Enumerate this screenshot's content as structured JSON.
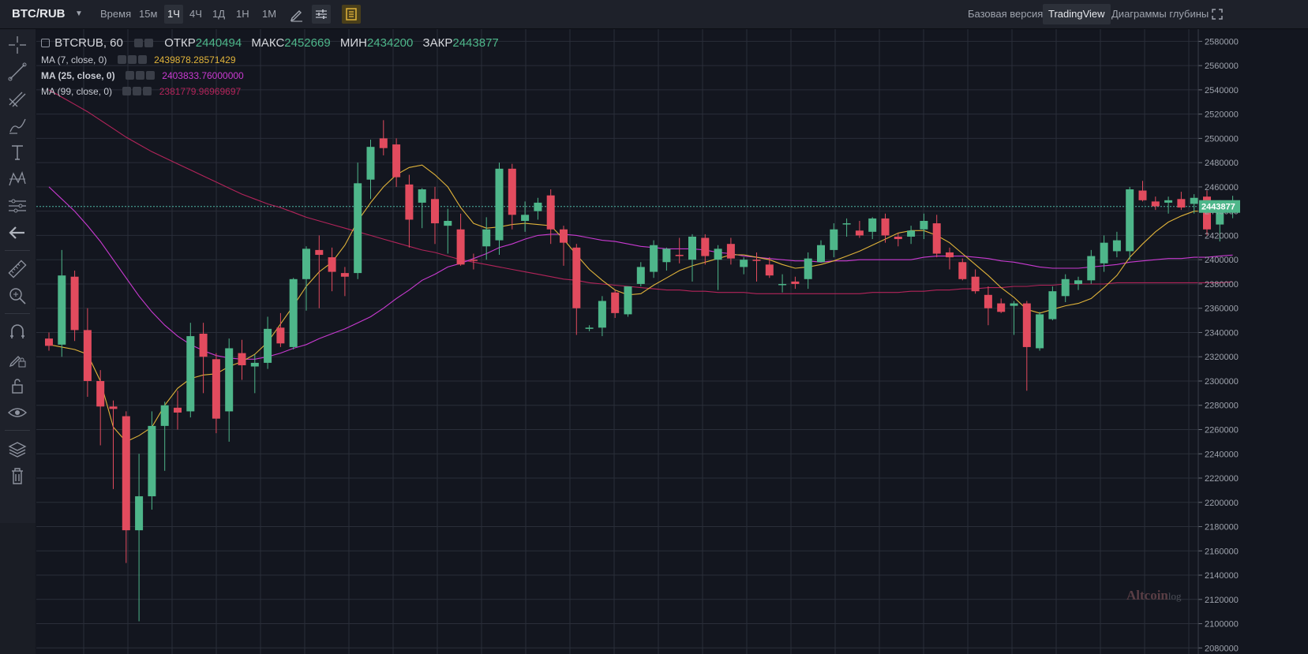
{
  "toolbar": {
    "symbol": "BTC/RUB",
    "timeframes": [
      {
        "label": "Время",
        "active": false
      },
      {
        "label": "15м",
        "active": false
      },
      {
        "label": "1Ч",
        "active": true
      },
      {
        "label": "4Ч",
        "active": false
      },
      {
        "label": "1Д",
        "active": false
      },
      {
        "label": "1Н",
        "active": false
      },
      {
        "label": "1М",
        "active": false
      }
    ],
    "views": [
      {
        "label": "Базовая версия",
        "active": false
      },
      {
        "label": "TradingView",
        "active": true
      },
      {
        "label": "Диаграммы глубины",
        "active": false
      }
    ]
  },
  "legend": {
    "title": "BTCRUB, 60",
    "ohlc": [
      {
        "label": "ОТКР",
        "value": "2440494"
      },
      {
        "label": "МАКС",
        "value": "2452669"
      },
      {
        "label": "МИН",
        "value": "2434200"
      },
      {
        "label": "ЗАКР",
        "value": "2443877"
      }
    ],
    "ma": [
      {
        "label": "MA (7, close, 0)",
        "value": "2439878.28571429",
        "color": "#e0b33a"
      },
      {
        "label": "MA (25, close, 0)",
        "value": "2403833.76000000",
        "color": "#c93ad1"
      },
      {
        "label": "MA (99, close, 0)",
        "value": "2381779.96969697",
        "color": "#b3245a"
      }
    ]
  },
  "colors": {
    "up": "#4eb68a",
    "down": "#e24b5e",
    "background": "#13161f",
    "grid": "#2a2e39"
  },
  "watermark": {
    "brand": "Altcoin",
    "suffix": "log"
  },
  "chart_data": {
    "type": "candlestick",
    "ylim": [
      2075000,
      2590000
    ],
    "price_ticks": [
      "2580000",
      "2560000",
      "2540000",
      "2520000",
      "2500000",
      "2480000",
      "2460000",
      "2440000",
      "2420000",
      "2400000",
      "2380000",
      "2360000",
      "2340000",
      "2320000",
      "2300000",
      "2280000",
      "2260000",
      "2240000",
      "2220000",
      "2200000",
      "2180000",
      "2160000",
      "2140000",
      "2120000",
      "2100000",
      "2080000"
    ],
    "last_price": "2443877",
    "candles": [
      [
        2335000,
        2340000,
        2325000,
        2329000
      ],
      [
        2330000,
        2408000,
        2320000,
        2387000
      ],
      [
        2386000,
        2391000,
        2333000,
        2342000
      ],
      [
        2342000,
        2360000,
        2287000,
        2300000
      ],
      [
        2300000,
        2309000,
        2247000,
        2279000
      ],
      [
        2279000,
        2284000,
        2211000,
        2277000
      ],
      [
        2271000,
        2275000,
        2150000,
        2177000
      ],
      [
        2177000,
        2240000,
        2102000,
        2205000
      ],
      [
        2205000,
        2275000,
        2194000,
        2263000
      ],
      [
        2263000,
        2283000,
        2226000,
        2280000
      ],
      [
        2278000,
        2292000,
        2260000,
        2274000
      ],
      [
        2275000,
        2348000,
        2270000,
        2337000
      ],
      [
        2339000,
        2348000,
        2290000,
        2320000
      ],
      [
        2318000,
        2323000,
        2257000,
        2269000
      ],
      [
        2275000,
        2335000,
        2250000,
        2327000
      ],
      [
        2323000,
        2334000,
        2301000,
        2313000
      ],
      [
        2312000,
        2322000,
        2290000,
        2315000
      ],
      [
        2315000,
        2353000,
        2310000,
        2343000
      ],
      [
        2344000,
        2356000,
        2328000,
        2331000
      ],
      [
        2328000,
        2385000,
        2326000,
        2384000
      ],
      [
        2384000,
        2411000,
        2358000,
        2409000
      ],
      [
        2408000,
        2420000,
        2360000,
        2404000
      ],
      [
        2402000,
        2410000,
        2374000,
        2390000
      ],
      [
        2389000,
        2394000,
        2370000,
        2386000
      ],
      [
        2389000,
        2480000,
        2384000,
        2463000
      ],
      [
        2466000,
        2499000,
        2450000,
        2493000
      ],
      [
        2500000,
        2515000,
        2486000,
        2492000
      ],
      [
        2495000,
        2500000,
        2460000,
        2468000
      ],
      [
        2462000,
        2470000,
        2410000,
        2433000
      ],
      [
        2447000,
        2459000,
        2426000,
        2458000
      ],
      [
        2450000,
        2460000,
        2413000,
        2430000
      ],
      [
        2428000,
        2442000,
        2405000,
        2432000
      ],
      [
        2425000,
        2438000,
        2395000,
        2396000
      ],
      [
        2400000,
        2405000,
        2392000,
        2399000
      ],
      [
        2411000,
        2435000,
        2400000,
        2425000
      ],
      [
        2416000,
        2480000,
        2404000,
        2475000
      ],
      [
        2475000,
        2479000,
        2425000,
        2437000
      ],
      [
        2432000,
        2448000,
        2423000,
        2437000
      ],
      [
        2440000,
        2451000,
        2433000,
        2447000
      ],
      [
        2453000,
        2458000,
        2413000,
        2425000
      ],
      [
        2425000,
        2428000,
        2395000,
        2414000
      ],
      [
        2410000,
        2413000,
        2338000,
        2360000
      ],
      [
        2343000,
        2346000,
        2341000,
        2344000
      ],
      [
        2344000,
        2370000,
        2337000,
        2366000
      ],
      [
        2373000,
        2375000,
        2352000,
        2356000
      ],
      [
        2355000,
        2378000,
        2353000,
        2378000
      ],
      [
        2380000,
        2398000,
        2378000,
        2394000
      ],
      [
        2390000,
        2416000,
        2385000,
        2412000
      ],
      [
        2398000,
        2410000,
        2391000,
        2409000
      ],
      [
        2404000,
        2418000,
        2397000,
        2403000
      ],
      [
        2400000,
        2421000,
        2382000,
        2419000
      ],
      [
        2418000,
        2421000,
        2396000,
        2403000
      ],
      [
        2400000,
        2412000,
        2375000,
        2409000
      ],
      [
        2413000,
        2418000,
        2396000,
        2401000
      ],
      [
        2394000,
        2402000,
        2388000,
        2400000
      ],
      [
        2400000,
        2406000,
        2382000,
        2399000
      ],
      [
        2396000,
        2402000,
        2385000,
        2387000
      ],
      [
        2380000,
        2388000,
        2373000,
        2380000
      ],
      [
        2382000,
        2386000,
        2376000,
        2380000
      ],
      [
        2384000,
        2406000,
        2376000,
        2401000
      ],
      [
        2398000,
        2416000,
        2398000,
        2412000
      ],
      [
        2408000,
        2430000,
        2402000,
        2425000
      ],
      [
        2430000,
        2434000,
        2419000,
        2430000
      ],
      [
        2424000,
        2432000,
        2418000,
        2420000
      ],
      [
        2423000,
        2435000,
        2417000,
        2434000
      ],
      [
        2434000,
        2438000,
        2414000,
        2420000
      ],
      [
        2419000,
        2422000,
        2411000,
        2417000
      ],
      [
        2419000,
        2428000,
        2413000,
        2424000
      ],
      [
        2425000,
        2438000,
        2417000,
        2432000
      ],
      [
        2430000,
        2437000,
        2402000,
        2405000
      ],
      [
        2406000,
        2410000,
        2392000,
        2402000
      ],
      [
        2398000,
        2401000,
        2383000,
        2384000
      ],
      [
        2386000,
        2392000,
        2372000,
        2374000
      ],
      [
        2371000,
        2378000,
        2346000,
        2360000
      ],
      [
        2364000,
        2368000,
        2356000,
        2357000
      ],
      [
        2362000,
        2366000,
        2338000,
        2364000
      ],
      [
        2364000,
        2366000,
        2292000,
        2328000
      ],
      [
        2327000,
        2357000,
        2325000,
        2355000
      ],
      [
        2351000,
        2378000,
        2350000,
        2374000
      ],
      [
        2370000,
        2388000,
        2365000,
        2384000
      ],
      [
        2380000,
        2386000,
        2375000,
        2383000
      ],
      [
        2383000,
        2408000,
        2380000,
        2403000
      ],
      [
        2397000,
        2420000,
        2390000,
        2414000
      ],
      [
        2407000,
        2423000,
        2402000,
        2416000
      ],
      [
        2407000,
        2460000,
        2400000,
        2458000
      ],
      [
        2457000,
        2465000,
        2448000,
        2449000
      ],
      [
        2448000,
        2452000,
        2441000,
        2444000
      ],
      [
        2447000,
        2452000,
        2438000,
        2449000
      ],
      [
        2450000,
        2456000,
        2441000,
        2443000
      ],
      [
        2446000,
        2454000,
        2438000,
        2451000
      ],
      [
        2452000,
        2457000,
        2420000,
        2425000
      ],
      [
        2429000,
        2449000,
        2415000,
        2439000
      ],
      [
        2440494,
        2452669,
        2434200,
        2443877
      ]
    ],
    "ma7": [
      2330000,
      2328000,
      2326000,
      2322000,
      2300000,
      2262000,
      2250000,
      2255000,
      2262000,
      2280000,
      2294000,
      2302000,
      2305000,
      2306000,
      2312000,
      2316000,
      2322000,
      2332000,
      2347000,
      2362000,
      2378000,
      2390000,
      2398000,
      2412000,
      2432000,
      2447000,
      2460000,
      2470000,
      2476000,
      2478000,
      2470000,
      2460000,
      2443000,
      2430000,
      2426000,
      2427000,
      2429000,
      2430000,
      2429000,
      2428000,
      2417000,
      2404000,
      2392000,
      2383000,
      2375000,
      2371000,
      2372000,
      2379000,
      2385000,
      2391000,
      2395000,
      2398000,
      2401000,
      2404000,
      2404000,
      2402000,
      2400000,
      2396000,
      2393000,
      2394000,
      2396000,
      2399000,
      2403000,
      2407000,
      2412000,
      2417000,
      2422000,
      2424000,
      2424000,
      2420000,
      2414000,
      2405000,
      2396000,
      2387000,
      2377000,
      2369000,
      2359000,
      2356000,
      2359000,
      2362000,
      2364000,
      2368000,
      2377000,
      2387000,
      2402000,
      2413000,
      2423000,
      2431000,
      2436000,
      2440000,
      2440000,
      2439000,
      2440000
    ],
    "ma25": [
      2460000,
      2450000,
      2440000,
      2428000,
      2415000,
      2400000,
      2385000,
      2370000,
      2357000,
      2346000,
      2337000,
      2330000,
      2325000,
      2321000,
      2319000,
      2318000,
      2318000,
      2320000,
      2323000,
      2327000,
      2330000,
      2335000,
      2339000,
      2343000,
      2348000,
      2353000,
      2360000,
      2368000,
      2375000,
      2383000,
      2388000,
      2394000,
      2397000,
      2401000,
      2405000,
      2410000,
      2413000,
      2417000,
      2420000,
      2421000,
      2421000,
      2420000,
      2418000,
      2416000,
      2415000,
      2413000,
      2411000,
      2410000,
      2409000,
      2409000,
      2409000,
      2408000,
      2406000,
      2405000,
      2403000,
      2402000,
      2401000,
      2400000,
      2399000,
      2399000,
      2398000,
      2399000,
      2399000,
      2400000,
      2400000,
      2400000,
      2400000,
      2400000,
      2402000,
      2403000,
      2403000,
      2403000,
      2402000,
      2401000,
      2399000,
      2398000,
      2396000,
      2394000,
      2393000,
      2393000,
      2393000,
      2394000,
      2395000,
      2396000,
      2398000,
      2399000,
      2400000,
      2401000,
      2401000,
      2402000,
      2402000,
      2403000,
      2403834
    ],
    "ma99": [
      2540000,
      2534000,
      2528000,
      2522000,
      2515000,
      2508000,
      2501000,
      2495000,
      2489000,
      2484000,
      2479000,
      2474000,
      2469000,
      2464000,
      2459000,
      2454000,
      2450000,
      2446000,
      2443000,
      2439000,
      2435000,
      2432000,
      2429000,
      2426000,
      2423000,
      2420000,
      2417000,
      2414000,
      2411000,
      2408000,
      2406000,
      2403000,
      2400000,
      2398000,
      2396000,
      2394000,
      2392000,
      2390000,
      2388000,
      2386000,
      2384000,
      2383000,
      2381000,
      2380000,
      2379000,
      2378000,
      2377000,
      2376000,
      2375000,
      2375000,
      2374000,
      2374000,
      2373000,
      2373000,
      2373000,
      2372000,
      2372000,
      2372000,
      2372000,
      2372000,
      2372000,
      2372000,
      2372000,
      2372000,
      2373000,
      2373000,
      2373000,
      2374000,
      2374000,
      2375000,
      2375000,
      2376000,
      2376000,
      2377000,
      2377000,
      2378000,
      2378000,
      2379000,
      2379000,
      2380000,
      2380000,
      2380000,
      2380000,
      2381000,
      2381000,
      2381000,
      2381000,
      2381000,
      2381000,
      2381000,
      2381000,
      2381000,
      2381780
    ]
  }
}
